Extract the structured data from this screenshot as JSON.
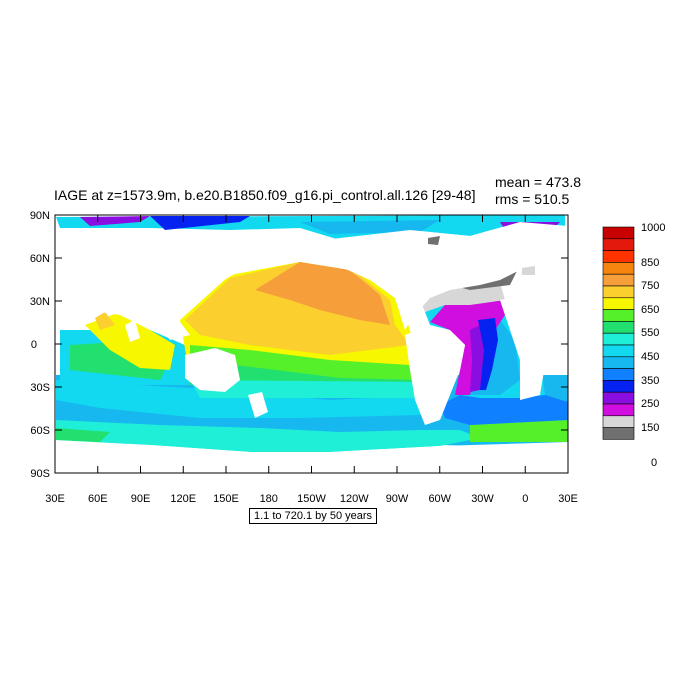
{
  "plot": {
    "title": "IAGE at z=1573.9m, b.e20.B1850.f09_g16.pi_control.all.126 [29-48]",
    "mean_text": "mean = 473.8",
    "rms_text": "rms = 510.5",
    "note": "1.1 to 720.1 by 50 years"
  },
  "axes": {
    "x_ticks": [
      "30E",
      "60E",
      "90E",
      "120E",
      "150E",
      "180",
      "150W",
      "120W",
      "90W",
      "60W",
      "30W",
      "0",
      "30E"
    ],
    "y_ticks": [
      "90N",
      "60N",
      "30N",
      "0",
      "30S",
      "60S",
      "90S"
    ]
  },
  "colorbar": {
    "labels": [
      "1000",
      "850",
      "750",
      "650",
      "550",
      "450",
      "350",
      "250",
      "150",
      "0"
    ],
    "colors": [
      "#C80000",
      "#E31A0B",
      "#FF3300",
      "#F5850E",
      "#F59E3A",
      "#FBCF2E",
      "#F7F700",
      "#55F02A",
      "#22E070",
      "#1FEFD6",
      "#12D8F0",
      "#17B8F0",
      "#0F80FF",
      "#0522F0",
      "#8A0EE0",
      "#D10EE0",
      "#D7D7D7",
      "#707070"
    ]
  },
  "chart_data": {
    "type": "heatmap",
    "title": "IAGE at z=1573.9m, b.e20.B1850.f09_g16.pi_control.all.126 [29-48]",
    "variable": "IAGE",
    "depth": "z=1573.9m",
    "mean": 473.8,
    "rms": 510.5,
    "contour_interval": "1.1 to 720.1 by 50 years",
    "x_range": [
      "30E",
      "30E"
    ],
    "y_range": [
      "90S",
      "90N"
    ]
  }
}
